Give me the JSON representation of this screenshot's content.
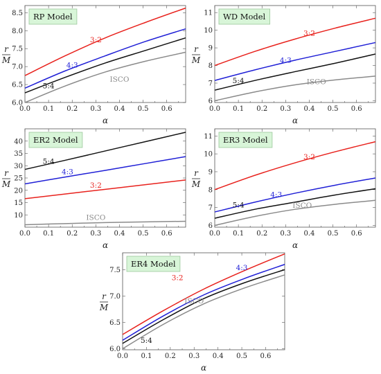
{
  "chart_data": [
    {
      "type": "line",
      "title": "RP Model",
      "xlabel": "α",
      "ylabel_num": "r",
      "ylabel_den": "M",
      "xlim": [
        0,
        0.68
      ],
      "ylim": [
        6.0,
        8.7
      ],
      "xticks": [
        0.0,
        0.1,
        0.2,
        0.3,
        0.4,
        0.5,
        0.6
      ],
      "xtick_labels": [
        "0.0",
        "0.1",
        "0.2",
        "0.3",
        "0.4",
        "0.5",
        "0.6"
      ],
      "yticks": [
        6.0,
        6.5,
        7.0,
        7.5,
        8.0,
        8.5
      ],
      "ytick_labels": [
        "6.0",
        "6.5",
        "7.0",
        "7.5",
        "8.0",
        "8.5"
      ],
      "series": [
        {
          "name": "3:2",
          "color": "#e8211c",
          "x": [
            0,
            0.17,
            0.34,
            0.51,
            0.68
          ],
          "y": [
            6.75,
            7.3,
            7.8,
            8.23,
            8.63
          ],
          "label_at": [
            0.3,
            7.68
          ]
        },
        {
          "name": "4:3",
          "color": "#1f1fd6",
          "x": [
            0,
            0.17,
            0.34,
            0.51,
            0.68
          ],
          "y": [
            6.4,
            6.88,
            7.3,
            7.7,
            8.05
          ],
          "label_at": [
            0.2,
            6.97
          ]
        },
        {
          "name": "5:4",
          "color": "#111111",
          "x": [
            0,
            0.17,
            0.34,
            0.51,
            0.68
          ],
          "y": [
            6.27,
            6.7,
            7.1,
            7.45,
            7.8
          ],
          "label_at": [
            0.1,
            6.4
          ]
        },
        {
          "name": "ISCO",
          "color": "#8a8a8a",
          "x": [
            0,
            0.17,
            0.34,
            0.51,
            0.68
          ],
          "y": [
            6.0,
            6.46,
            6.85,
            7.15,
            7.4
          ],
          "label_at": [
            0.4,
            6.58
          ]
        }
      ]
    },
    {
      "type": "line",
      "title": "WD Model",
      "xlabel": "α",
      "ylabel_num": "r",
      "ylabel_den": "M",
      "xlim": [
        0,
        0.68
      ],
      "ylim": [
        5.9,
        11.4
      ],
      "xticks": [
        0.0,
        0.1,
        0.2,
        0.3,
        0.4,
        0.5,
        0.6
      ],
      "xtick_labels": [
        "0.0",
        "0.1",
        "0.2",
        "0.3",
        "0.4",
        "0.5",
        "0.6"
      ],
      "yticks": [
        6,
        7,
        8,
        9,
        10,
        11
      ],
      "ytick_labels": [
        "6",
        "7",
        "8",
        "9",
        "10",
        "11"
      ],
      "series": [
        {
          "name": "3:2",
          "color": "#e8211c",
          "x": [
            0,
            0.17,
            0.34,
            0.51,
            0.68
          ],
          "y": [
            8.0,
            8.8,
            9.5,
            10.12,
            10.68
          ],
          "label_at": [
            0.4,
            9.7
          ]
        },
        {
          "name": "4:3",
          "color": "#1f1fd6",
          "x": [
            0,
            0.17,
            0.34,
            0.51,
            0.68
          ],
          "y": [
            7.15,
            7.75,
            8.3,
            8.8,
            9.3
          ],
          "label_at": [
            0.3,
            8.15
          ]
        },
        {
          "name": "5:4",
          "color": "#111111",
          "x": [
            0,
            0.17,
            0.34,
            0.51,
            0.68
          ],
          "y": [
            6.6,
            7.15,
            7.65,
            8.13,
            8.65
          ],
          "label_at": [
            0.1,
            7.0
          ]
        },
        {
          "name": "ISCO",
          "color": "#8a8a8a",
          "x": [
            0,
            0.17,
            0.34,
            0.51,
            0.68
          ],
          "y": [
            6.0,
            6.5,
            6.9,
            7.18,
            7.4
          ],
          "label_at": [
            0.43,
            6.95
          ]
        }
      ]
    },
    {
      "type": "line",
      "title": "ER2 Model",
      "xlabel": "α",
      "ylabel_num": "r",
      "ylabel_den": "M",
      "xlim": [
        0,
        0.68
      ],
      "ylim": [
        5.0,
        45.0
      ],
      "xticks": [
        0.0,
        0.1,
        0.2,
        0.3,
        0.4,
        0.5,
        0.6
      ],
      "xtick_labels": [
        "0.0",
        "0.1",
        "0.2",
        "0.3",
        "0.4",
        "0.5",
        "0.6"
      ],
      "yticks": [
        10,
        15,
        20,
        25,
        30,
        35,
        40
      ],
      "ytick_labels": [
        "10",
        "15",
        "20",
        "25",
        "30",
        "35",
        "40"
      ],
      "series": [
        {
          "name": "3:2",
          "color": "#e8211c",
          "x": [
            0,
            0.17,
            0.34,
            0.51,
            0.68
          ],
          "y": [
            16.6,
            18.5,
            20.4,
            22.3,
            24.2
          ],
          "label_at": [
            0.3,
            21.0
          ]
        },
        {
          "name": "4:3",
          "color": "#1f1fd6",
          "x": [
            0,
            0.17,
            0.34,
            0.51,
            0.68
          ],
          "y": [
            22.6,
            25.4,
            28.1,
            30.9,
            33.7
          ],
          "label_at": [
            0.18,
            26.5
          ]
        },
        {
          "name": "5:4",
          "color": "#111111",
          "x": [
            0,
            0.17,
            0.34,
            0.51,
            0.68
          ],
          "y": [
            28.5,
            32.2,
            36.0,
            39.8,
            43.6
          ],
          "label_at": [
            0.1,
            30.8
          ]
        },
        {
          "name": "ISCO",
          "color": "#8a8a8a",
          "x": [
            0,
            0.17,
            0.34,
            0.51,
            0.68
          ],
          "y": [
            6.0,
            6.45,
            6.85,
            7.15,
            7.4
          ],
          "label_at": [
            0.3,
            7.9
          ]
        }
      ]
    },
    {
      "type": "line",
      "title": "ER3 Model",
      "xlabel": "α",
      "ylabel_num": "r",
      "ylabel_den": "M",
      "xlim": [
        0,
        0.68
      ],
      "ylim": [
        5.9,
        11.4
      ],
      "xticks": [
        0.0,
        0.1,
        0.2,
        0.3,
        0.4,
        0.5,
        0.6
      ],
      "xtick_labels": [
        "0.0",
        "0.1",
        "0.2",
        "0.3",
        "0.4",
        "0.5",
        "0.6"
      ],
      "yticks": [
        6,
        7,
        8,
        9,
        10,
        11
      ],
      "ytick_labels": [
        "6",
        "7",
        "8",
        "9",
        "10",
        "11"
      ],
      "series": [
        {
          "name": "3:2",
          "color": "#e8211c",
          "x": [
            0,
            0.17,
            0.34,
            0.51,
            0.68
          ],
          "y": [
            8.0,
            8.8,
            9.5,
            10.12,
            10.68
          ],
          "label_at": [
            0.4,
            9.7
          ]
        },
        {
          "name": "4:3",
          "color": "#1f1fd6",
          "x": [
            0,
            0.17,
            0.34,
            0.51,
            0.68
          ],
          "y": [
            6.75,
            7.3,
            7.8,
            8.25,
            8.65
          ],
          "label_at": [
            0.26,
            7.58
          ]
        },
        {
          "name": "5:4",
          "color": "#111111",
          "x": [
            0,
            0.17,
            0.34,
            0.51,
            0.68
          ],
          "y": [
            6.4,
            6.9,
            7.3,
            7.7,
            8.05
          ],
          "label_at": [
            0.1,
            7.0
          ]
        },
        {
          "name": "ISCO",
          "color": "#8a8a8a",
          "x": [
            0,
            0.17,
            0.34,
            0.51,
            0.68
          ],
          "y": [
            6.0,
            6.5,
            6.9,
            7.18,
            7.4
          ],
          "label_at": [
            0.37,
            6.98
          ]
        }
      ]
    },
    {
      "type": "line",
      "title": "ER4 Model",
      "xlabel": "α",
      "ylabel_num": "r",
      "ylabel_den": "M",
      "xlim": [
        0,
        0.68
      ],
      "ylim": [
        5.98,
        7.82
      ],
      "xticks": [
        0.0,
        0.1,
        0.2,
        0.3,
        0.4,
        0.5,
        0.6
      ],
      "xtick_labels": [
        "0.0",
        "0.1",
        "0.2",
        "0.3",
        "0.4",
        "0.5",
        "0.6"
      ],
      "yticks": [
        6.0,
        6.5,
        7.0,
        7.5
      ],
      "ytick_labels": [
        "6.0",
        "6.5",
        "7.0",
        "7.5"
      ],
      "series": [
        {
          "name": "3:2",
          "color": "#e8211c",
          "x": [
            0,
            0.17,
            0.34,
            0.51,
            0.68
          ],
          "y": [
            6.27,
            6.72,
            7.13,
            7.48,
            7.8
          ],
          "label_at": [
            0.23,
            7.3
          ]
        },
        {
          "name": "4:3",
          "color": "#1f1fd6",
          "x": [
            0,
            0.17,
            0.34,
            0.51,
            0.68
          ],
          "y": [
            6.16,
            6.62,
            7.02,
            7.33,
            7.6
          ],
          "label_at": [
            0.5,
            7.49
          ]
        },
        {
          "name": "5:4",
          "color": "#111111",
          "x": [
            0,
            0.17,
            0.34,
            0.51,
            0.68
          ],
          "y": [
            6.1,
            6.55,
            6.95,
            7.25,
            7.5
          ],
          "label_at": [
            0.1,
            6.11
          ]
        },
        {
          "name": "ISCO",
          "color": "#8a8a8a",
          "x": [
            0,
            0.17,
            0.34,
            0.51,
            0.68
          ],
          "y": [
            6.0,
            6.46,
            6.85,
            7.15,
            7.4
          ],
          "label_at": [
            0.3,
            6.86
          ]
        }
      ]
    }
  ]
}
